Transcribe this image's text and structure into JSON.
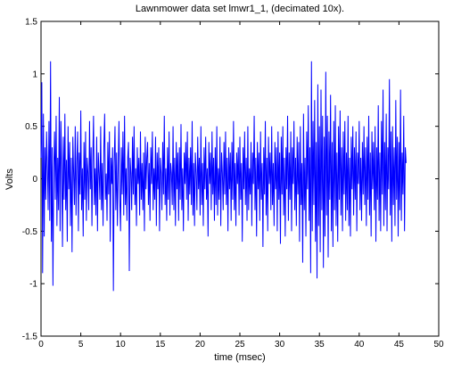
{
  "chart_data": {
    "type": "line",
    "title": "Lawnmower data set lmwr1_1, (decimated 10x).",
    "xlabel": "time (msec)",
    "ylabel": "Volts",
    "xlim": [
      0,
      50
    ],
    "ylim": [
      -1.5,
      1.5
    ],
    "grid": false,
    "color": "#0000ff",
    "x_ticks": [
      0,
      5,
      10,
      15,
      20,
      25,
      30,
      35,
      40,
      45,
      50
    ],
    "x_tick_labels": [
      "0",
      "5",
      "10",
      "15",
      "20",
      "25",
      "30",
      "35",
      "40",
      "45",
      "50"
    ],
    "y_ticks": [
      -1.5,
      -1,
      -0.5,
      0,
      0.5,
      1,
      1.5
    ],
    "y_tick_labels": [
      "-1.5",
      "-1",
      "-0.5",
      "0",
      "0.5",
      "1",
      "1.5"
    ],
    "series": [
      {
        "x_start": 0,
        "x_step": 0.1,
        "values": [
          0.2,
          0.92,
          -0.9,
          0.62,
          -0.55,
          0.3,
          -0.2,
          0.45,
          0.1,
          -0.3,
          0.55,
          -0.4,
          1.12,
          -0.6,
          0.3,
          -1.02,
          0.1,
          0.45,
          -0.2,
          0.6,
          -0.45,
          0.2,
          -0.3,
          0.78,
          -0.5,
          0.55,
          0.1,
          -0.65,
          0.4,
          -0.2,
          0.62,
          -0.3,
          0.18,
          -0.6,
          0.5,
          -0.1,
          0.35,
          -0.45,
          0.2,
          -0.7,
          0.4,
          0.05,
          -0.25,
          0.5,
          -0.35,
          0.15,
          0.45,
          -0.5,
          0.25,
          -0.15,
          0.65,
          -0.3,
          0.1,
          -0.55,
          0.35,
          -0.2,
          0.45,
          -0.4,
          0.2,
          0.05,
          -0.3,
          0.55,
          -0.1,
          0.3,
          -0.45,
          0.15,
          0.6,
          -0.25,
          0.1,
          -0.35,
          0.4,
          -0.5,
          0.25,
          0.05,
          -0.2,
          0.5,
          -0.3,
          0.15,
          -0.45,
          0.3,
          0.62,
          -0.2,
          0.05,
          -0.4,
          0.35,
          -0.15,
          0.45,
          -0.6,
          0.2,
          -0.05,
          0.3,
          -1.07,
          0.15,
          0.5,
          -0.3,
          0.25,
          -0.45,
          0.1,
          0.55,
          -0.2,
          -0.5,
          0.3,
          -0.15,
          0.45,
          -0.35,
          0.6,
          -0.25,
          0.1,
          -0.4,
          0.2,
          0.35,
          -0.88,
          0.2,
          0.05,
          -0.3,
          0.4,
          -0.15,
          0.5,
          -0.25,
          0.1,
          -0.45,
          0.3,
          -0.05,
          0.2,
          -0.35,
          0.45,
          -0.2,
          0.15,
          -0.3,
          0.25,
          -0.5,
          0.4,
          -0.1,
          0.2,
          0.35,
          -0.25,
          0.15,
          -0.4,
          0.3,
          -0.05,
          0.45,
          -0.3,
          0.1,
          -0.2,
          0.4,
          -0.45,
          0.25,
          -0.1,
          0.3,
          -0.5,
          0.2,
          0.05,
          -0.3,
          0.35,
          -0.15,
          0.6,
          -0.25,
          0.1,
          -0.4,
          0.3,
          -0.2,
          0.45,
          -0.35,
          0.15,
          0.05,
          -0.25,
          0.5,
          -0.3,
          0.2,
          -0.45,
          0.35,
          -0.1,
          0.25,
          -0.4,
          0.3,
          -0.2,
          0.52,
          -0.3,
          0.1,
          -0.5,
          0.25,
          -0.05,
          0.35,
          -0.2,
          0.45,
          -0.4,
          0.2,
          -0.15,
          0.3,
          -0.25,
          0.55,
          -0.35,
          0.15,
          -0.45,
          0.25,
          0.05,
          -0.3,
          0.4,
          -0.1,
          0.2,
          -0.35,
          0.5,
          -0.25,
          0.15,
          -0.45,
          0.3,
          -0.1,
          0.4,
          -0.2,
          0.1,
          -0.55,
          0.35,
          -0.05,
          0.25,
          -0.3,
          0.45,
          -0.15,
          0.2,
          -0.4,
          0.3,
          -0.25,
          0.5,
          -0.35,
          0.1,
          -0.2,
          0.4,
          -0.45,
          0.25,
          0.05,
          -0.3,
          0.35,
          -0.15,
          0.45,
          -0.25,
          0.2,
          -0.5,
          0.3,
          -0.1,
          0.25,
          -0.4,
          0.35,
          -0.2,
          0.55,
          -0.3,
          0.15,
          -0.45,
          0.25,
          -0.05,
          0.3,
          -0.35,
          0.4,
          -0.2,
          0.15,
          -0.6,
          0.3,
          -0.1,
          0.45,
          -0.25,
          0.2,
          -0.4,
          0.5,
          -0.3,
          0.1,
          -0.15,
          0.35,
          -0.45,
          0.25,
          -0.05,
          0.6,
          -0.3,
          0.2,
          -0.55,
          0.35,
          -0.1,
          0.25,
          -0.4,
          0.45,
          -0.2,
          0.15,
          -0.65,
          0.3,
          -0.15,
          0.55,
          -0.35,
          0.2,
          -0.5,
          0.4,
          -0.05,
          0.25,
          -0.3,
          0.5,
          -0.25,
          0.15,
          -0.45,
          0.35,
          -0.1,
          0.3,
          -0.5,
          0.45,
          -0.2,
          0.25,
          -0.62,
          0.4,
          -0.15,
          0.5,
          -0.35,
          0.2,
          -0.55,
          0.3,
          -0.1,
          0.6,
          -0.4,
          0.25,
          -0.2,
          0.45,
          -0.5,
          0.3,
          -0.05,
          0.55,
          -0.3,
          0.2,
          -0.45,
          0.4,
          -0.15,
          0.35,
          -0.6,
          0.5,
          -0.25,
          0.15,
          -0.8,
          0.62,
          -0.3,
          0.2,
          -0.55,
          0.45,
          -0.1,
          0.7,
          -0.4,
          0.3,
          -0.9,
          1.12,
          -0.5,
          0.55,
          -0.25,
          0.75,
          -0.6,
          0.35,
          -0.95,
          0.9,
          -0.45,
          0.5,
          -0.7,
          0.85,
          -0.3,
          0.6,
          -0.85,
          0.4,
          -0.55,
          1.02,
          -0.35,
          0.6,
          -0.75,
          0.45,
          -0.2,
          0.8,
          -0.5,
          0.35,
          -0.65,
          0.55,
          -0.3,
          0.7,
          -0.45,
          0.25,
          -0.6,
          0.5,
          -0.2,
          0.65,
          -0.35,
          0.3,
          -0.5,
          0.45,
          -0.15,
          0.55,
          -0.4,
          0.25,
          -0.3,
          0.6,
          -0.45,
          0.2,
          -0.55,
          0.4,
          -0.1,
          0.5,
          -0.35,
          0.3,
          -0.2,
          0.45,
          -0.5,
          0.25,
          -0.05,
          0.55,
          -0.3,
          0.2,
          -0.4,
          0.35,
          -0.15,
          0.5,
          -0.25,
          0.3,
          -0.45,
          0.4,
          -0.2,
          0.6,
          -0.35,
          0.25,
          -0.55,
          0.45,
          -0.1,
          0.35,
          -0.3,
          0.5,
          -0.6,
          0.3,
          -0.2,
          0.7,
          -0.4,
          0.25,
          -0.5,
          0.55,
          -0.15,
          0.85,
          -0.45,
          0.35,
          -0.3,
          0.62,
          -0.5,
          0.3,
          -0.1,
          0.95,
          -0.35,
          0.45,
          -0.6,
          0.5,
          -0.25,
          0.3,
          -0.45,
          0.75,
          -0.2,
          0.4,
          -0.55,
          0.35,
          -0.3,
          0.85,
          -0.4,
          0.25,
          -0.15,
          0.6,
          -0.5,
          0.3,
          0.15
        ]
      }
    ]
  }
}
